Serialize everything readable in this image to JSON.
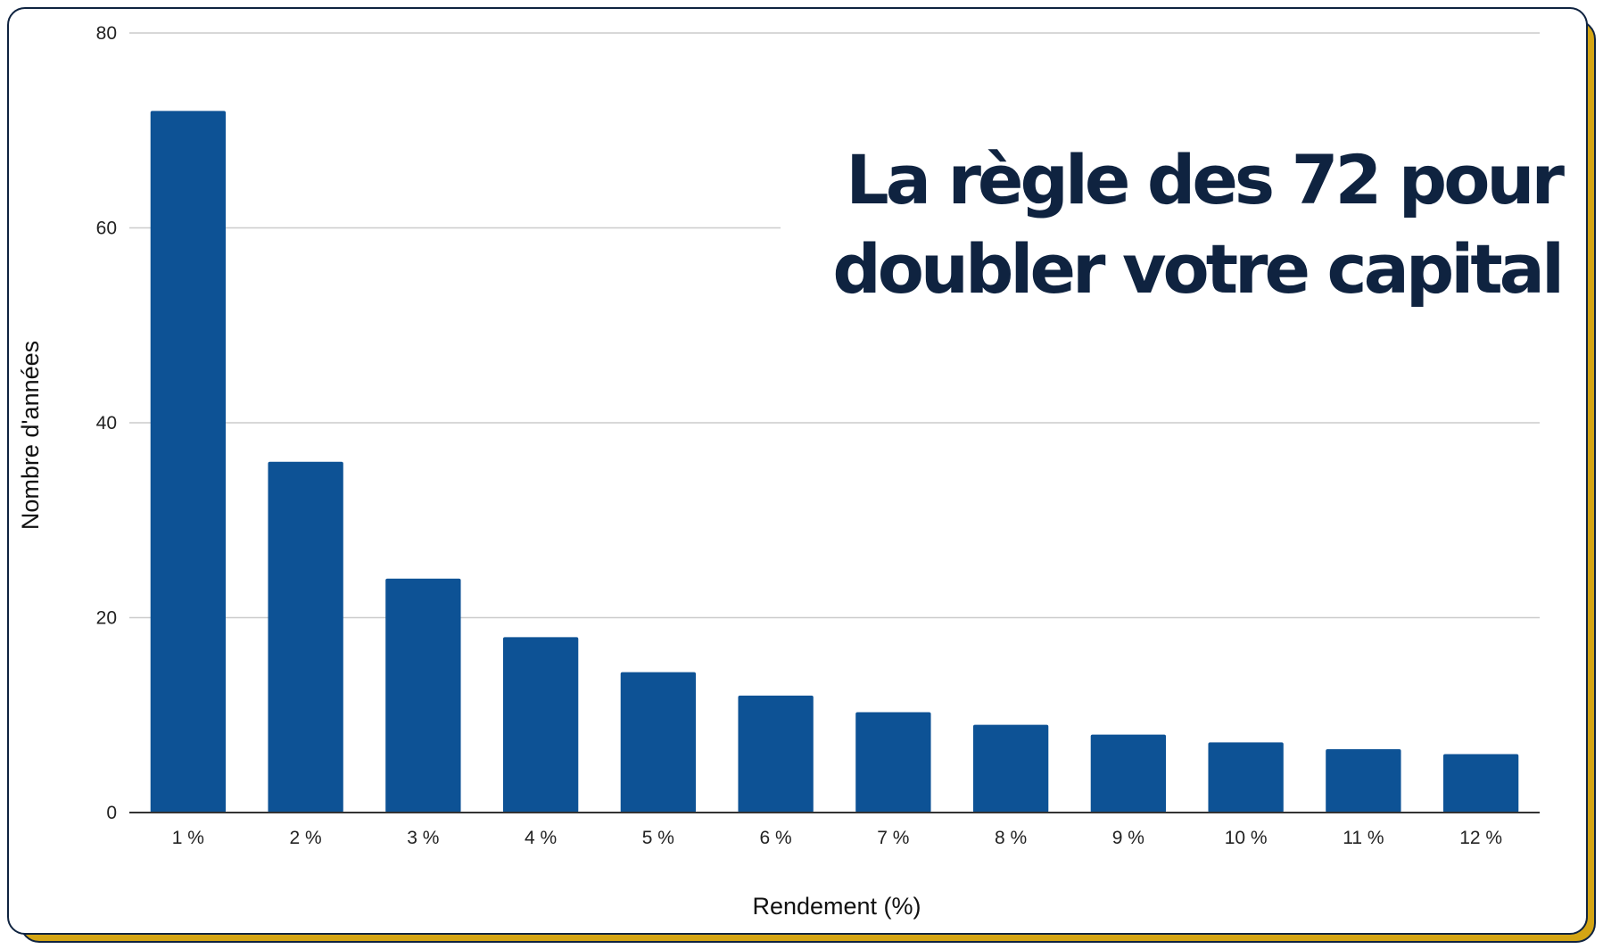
{
  "chart_data": {
    "type": "bar",
    "title_lines": [
      "La règle des 72 pour",
      "doubler votre capital"
    ],
    "xlabel": "Rendement (%)",
    "ylabel": "Nombre d'années",
    "categories": [
      "1 %",
      "2 %",
      "3 %",
      "4 %",
      "5 %",
      "6 %",
      "7 %",
      "8 %",
      "9 %",
      "10 %",
      "11 %",
      "12 %"
    ],
    "values": [
      72,
      36,
      24,
      18,
      14.4,
      12,
      10.3,
      9,
      8,
      7.2,
      6.5,
      6
    ],
    "ylim": [
      0,
      80
    ],
    "yticks": [
      "0",
      "20",
      "40",
      "60",
      "80"
    ],
    "grid": true,
    "bar_color": "#0d5295",
    "title_color": "#0f2340",
    "accent_color": "#d4a514"
  }
}
